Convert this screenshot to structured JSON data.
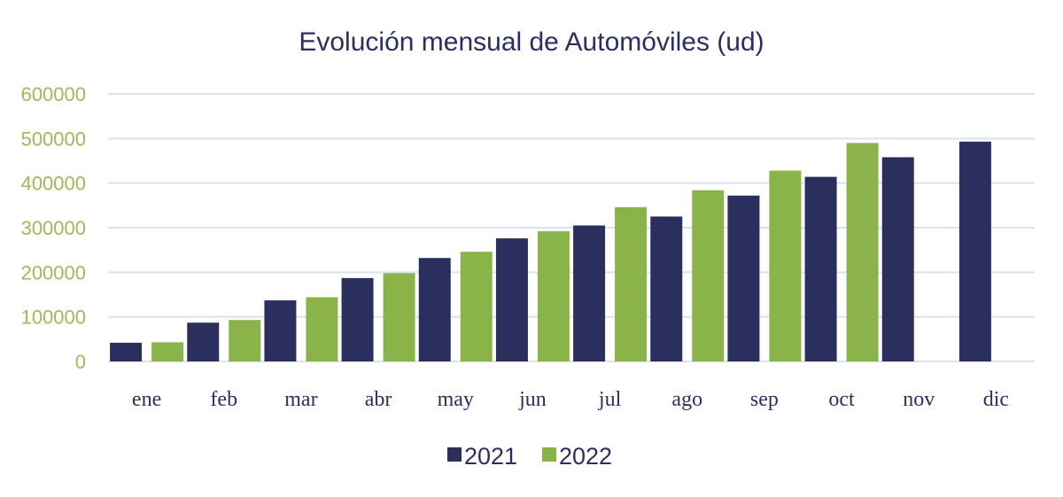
{
  "chart_data": {
    "type": "bar",
    "title": "Evolución mensual de Automóviles (ud)",
    "xlabel": "",
    "ylabel": "",
    "categories": [
      "ene",
      "feb",
      "mar",
      "abr",
      "may",
      "jun",
      "jul",
      "ago",
      "sep",
      "oct",
      "nov",
      "dic"
    ],
    "series": [
      {
        "name": "2021",
        "color": "#2b2f5e",
        "values": [
          42000,
          87000,
          137000,
          187000,
          232000,
          276000,
          305000,
          325000,
          372000,
          414000,
          458000,
          493000
        ]
      },
      {
        "name": "2022",
        "color": "#8ab34a",
        "values": [
          43000,
          93000,
          144000,
          198000,
          246000,
          292000,
          346000,
          384000,
          428000,
          490000,
          null,
          null
        ]
      }
    ],
    "ylim": [
      0,
      600000
    ],
    "yticks": [
      "0",
      "100000",
      "200000",
      "300000",
      "400000",
      "500000",
      "600000"
    ],
    "grid": true,
    "legend_position": "bottom"
  }
}
